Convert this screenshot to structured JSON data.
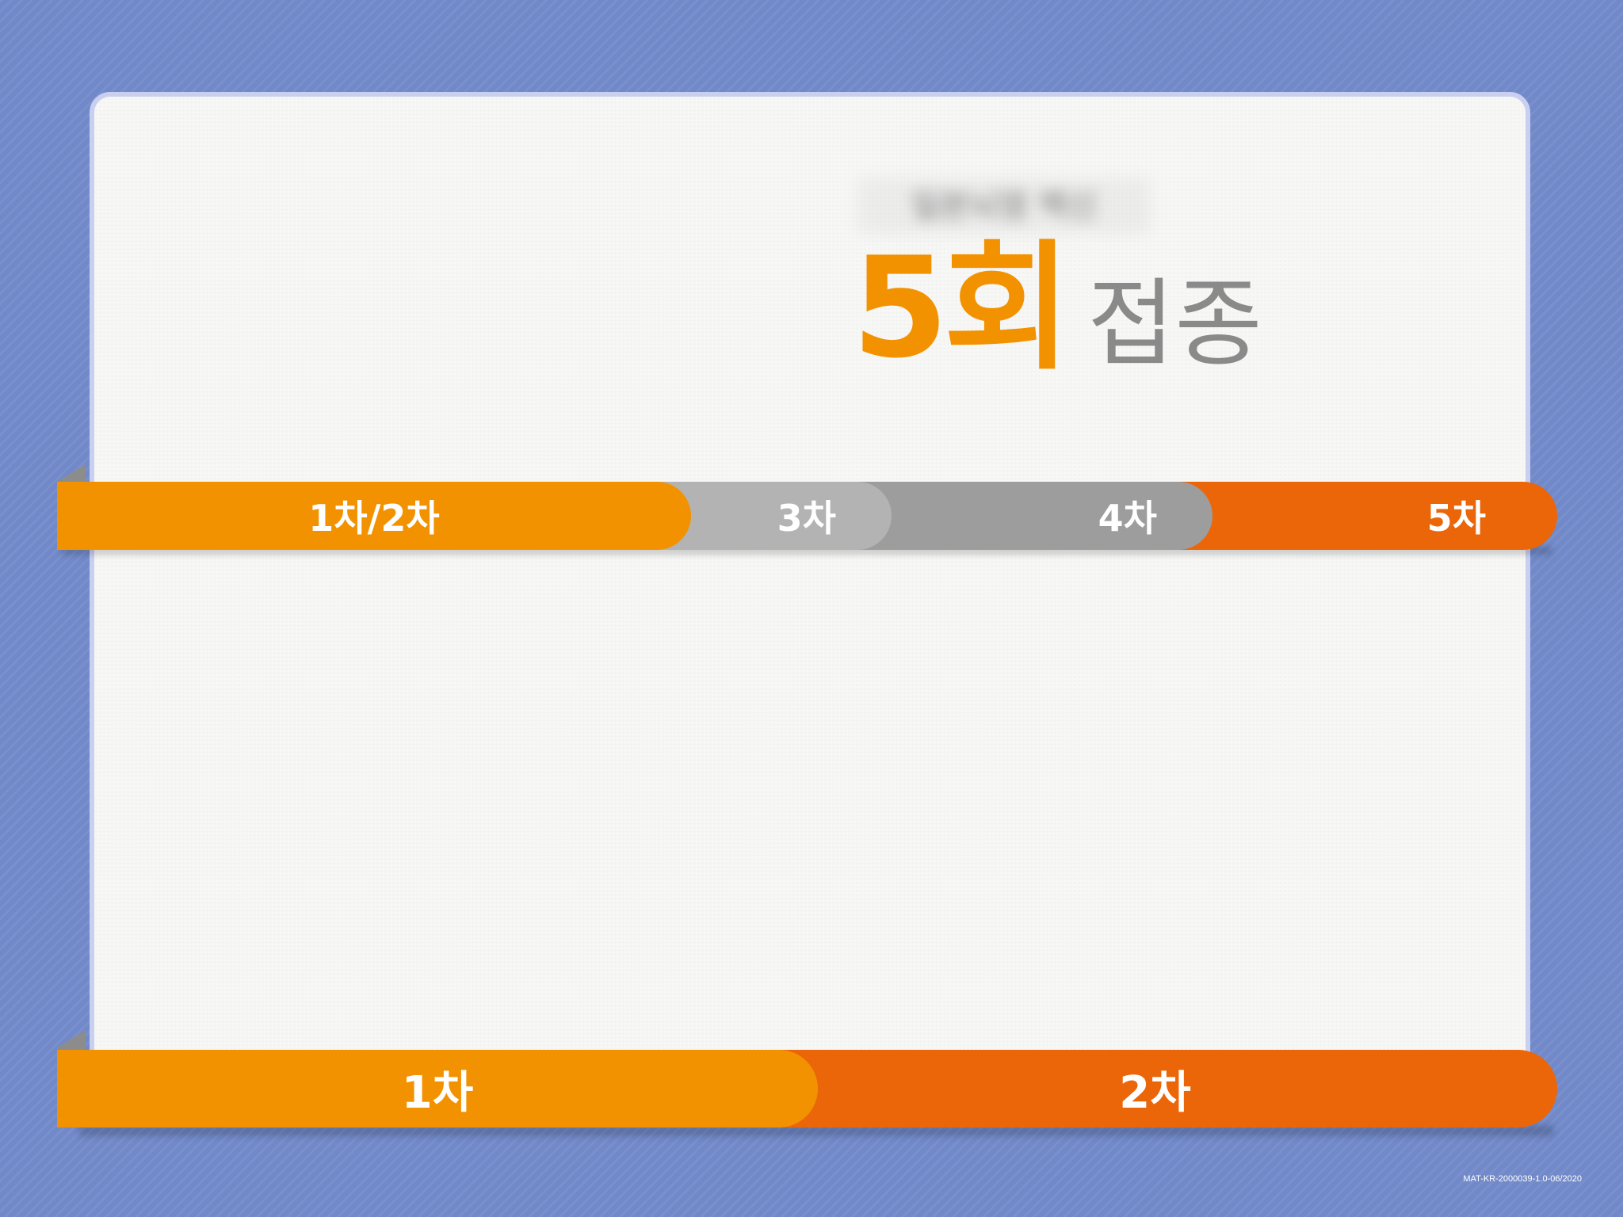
{
  "header": {
    "subtitle": "일본뇌염 백신",
    "count": "5회",
    "label": "접종"
  },
  "schedule_top": [
    {
      "label": "1차/2차",
      "color": "#f39200"
    },
    {
      "label": "3차",
      "color": "#b3b3b3"
    },
    {
      "label": "4차",
      "color": "#9d9d9d"
    },
    {
      "label": "5차",
      "color": "#eb6608"
    }
  ],
  "schedule_bottom": [
    {
      "label": "1차",
      "color": "#f39200"
    },
    {
      "label": "2차",
      "color": "#eb6608"
    }
  ],
  "footer": {
    "code": "MAT-KR-2000039-1.0-06/2020"
  }
}
